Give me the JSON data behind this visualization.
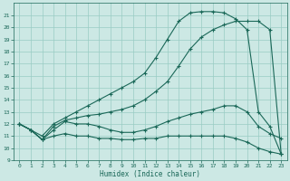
{
  "xlabel": "Humidex (Indice chaleur)",
  "bg_color": "#cce8e4",
  "grid_color": "#99ccc4",
  "line_color": "#1a6858",
  "xlim": [
    -0.5,
    23.5
  ],
  "ylim": [
    9,
    22
  ],
  "xticks": [
    0,
    1,
    2,
    3,
    4,
    5,
    6,
    7,
    8,
    9,
    10,
    11,
    12,
    13,
    14,
    15,
    16,
    17,
    18,
    19,
    20,
    21,
    22,
    23
  ],
  "yticks": [
    9,
    10,
    11,
    12,
    13,
    14,
    15,
    16,
    17,
    18,
    19,
    20,
    21
  ],
  "curve_main_x": [
    0,
    1,
    2,
    3,
    4,
    5,
    6,
    7,
    8,
    9,
    10,
    11,
    12,
    13,
    14,
    15,
    16,
    17,
    18,
    19,
    20,
    21,
    22,
    23
  ],
  "curve_main_y": [
    12.0,
    11.5,
    11.0,
    12.0,
    12.5,
    13.0,
    13.5,
    14.0,
    14.5,
    15.0,
    15.5,
    16.2,
    17.5,
    19.0,
    20.5,
    21.2,
    21.3,
    21.3,
    21.2,
    20.7,
    19.8,
    13.0,
    11.8,
    9.5
  ],
  "curve2_x": [
    0,
    1,
    2,
    3,
    4,
    5,
    6,
    7,
    8,
    9,
    10,
    11,
    12,
    13,
    14,
    15,
    16,
    17,
    18,
    19,
    20,
    21,
    22,
    23
  ],
  "curve2_y": [
    12.0,
    11.5,
    10.7,
    11.5,
    12.2,
    12.0,
    12.0,
    11.8,
    11.5,
    11.3,
    11.3,
    11.5,
    11.8,
    12.2,
    12.5,
    12.8,
    13.0,
    13.2,
    13.5,
    13.5,
    13.0,
    11.8,
    11.2,
    10.8
  ],
  "curve3_x": [
    0,
    1,
    2,
    3,
    4,
    5,
    6,
    7,
    8,
    9,
    10,
    11,
    12,
    13,
    14,
    15,
    16,
    17,
    18,
    19,
    20,
    21,
    22,
    23
  ],
  "curve3_y": [
    12.0,
    11.5,
    10.7,
    11.0,
    11.2,
    11.0,
    11.0,
    10.8,
    10.8,
    10.7,
    10.7,
    10.8,
    10.8,
    11.0,
    11.0,
    11.0,
    11.0,
    11.0,
    11.0,
    10.8,
    10.5,
    10.0,
    9.7,
    9.5
  ],
  "curve4_x": [
    0,
    1,
    2,
    3,
    4,
    5,
    6,
    7,
    8,
    9,
    10,
    11,
    12,
    13,
    14,
    15,
    16,
    17,
    18,
    19,
    20,
    21,
    22,
    23
  ],
  "curve4_y": [
    12.0,
    11.5,
    10.7,
    11.8,
    12.3,
    12.5,
    12.7,
    12.8,
    13.0,
    13.2,
    13.5,
    14.0,
    14.7,
    15.5,
    16.8,
    18.2,
    19.2,
    19.8,
    20.2,
    20.5,
    20.5,
    20.5,
    19.8,
    9.5
  ]
}
